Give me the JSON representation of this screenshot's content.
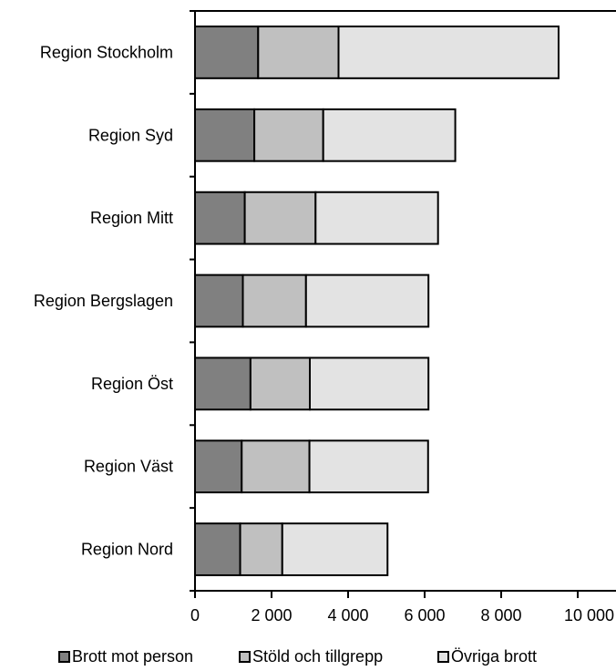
{
  "chart_data": {
    "type": "bar",
    "orientation": "horizontal",
    "stacked": true,
    "categories": [
      "Region Stockholm",
      "Region Syd",
      "Region Mitt",
      "Region Bergslagen",
      "Region Öst",
      "Region Väst",
      "Region Nord"
    ],
    "series": [
      {
        "name": "Brott mot person",
        "values": [
          1650,
          1550,
          1300,
          1250,
          1450,
          1220,
          1180
        ],
        "color": "#808080"
      },
      {
        "name": "Stöld och tillgrepp",
        "values": [
          2100,
          1800,
          1850,
          1650,
          1550,
          1770,
          1100
        ],
        "color": "#c0c0c0"
      },
      {
        "name": "Övriga brott",
        "values": [
          5750,
          3450,
          3200,
          3200,
          3100,
          3100,
          2750
        ],
        "color": "#e3e3e3"
      }
    ],
    "x_ticks": [
      "0",
      "2 000",
      "4 000",
      "6 000",
      "8 000",
      "10 000"
    ],
    "xlim": [
      0,
      11000
    ],
    "grid": false,
    "legend_position": "bottom"
  }
}
